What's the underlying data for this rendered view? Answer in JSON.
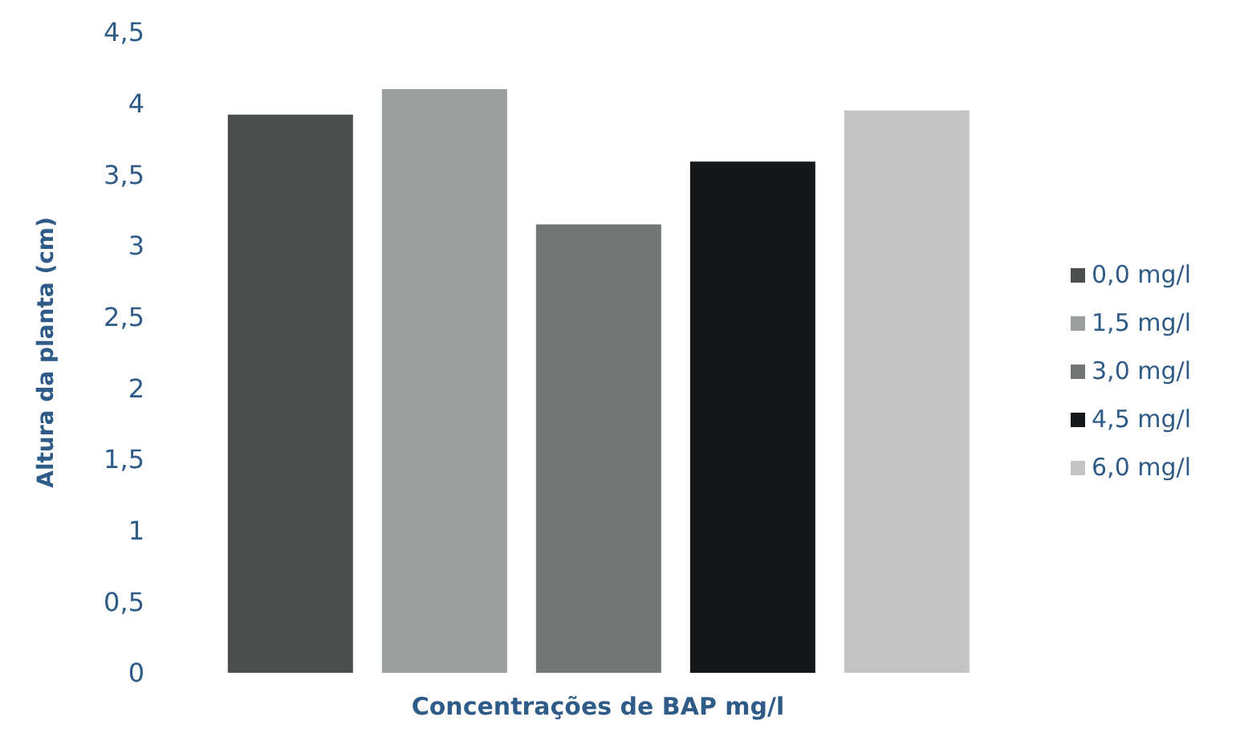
{
  "chart_data": {
    "type": "bar",
    "xlabel": "Concentrações de BAP mg/l",
    "ylabel": "Altura da planta (cm)",
    "categories": [
      null
    ],
    "series": [
      {
        "name": "0,0 mg/l",
        "color": "#4c4f50",
        "values": [
          3.92
        ]
      },
      {
        "name": "1,5 mg/l",
        "color": "#9c9fa0",
        "values": [
          4.1
        ]
      },
      {
        "name": "3,0 mg/l",
        "color": "#737676",
        "values": [
          3.15
        ]
      },
      {
        "name": "4,5 mg/l",
        "color": "#15181a",
        "values": [
          3.59
        ]
      },
      {
        "name": "6,0 mg/l",
        "color": "#c4c4c4",
        "values": [
          3.95
        ]
      }
    ],
    "ylim": [
      0,
      4.5
    ],
    "yticks": [
      0,
      {
        "value": 0.5,
        "label": "0,5"
      },
      1,
      {
        "value": 1.5,
        "label": "1,5"
      },
      2,
      {
        "value": 2.5,
        "label": "2,5"
      },
      3,
      {
        "value": 3.5,
        "label": "3,5"
      },
      4,
      {
        "value": 4.5,
        "label": "4,5"
      }
    ],
    "grid": false,
    "legend": "right"
  }
}
